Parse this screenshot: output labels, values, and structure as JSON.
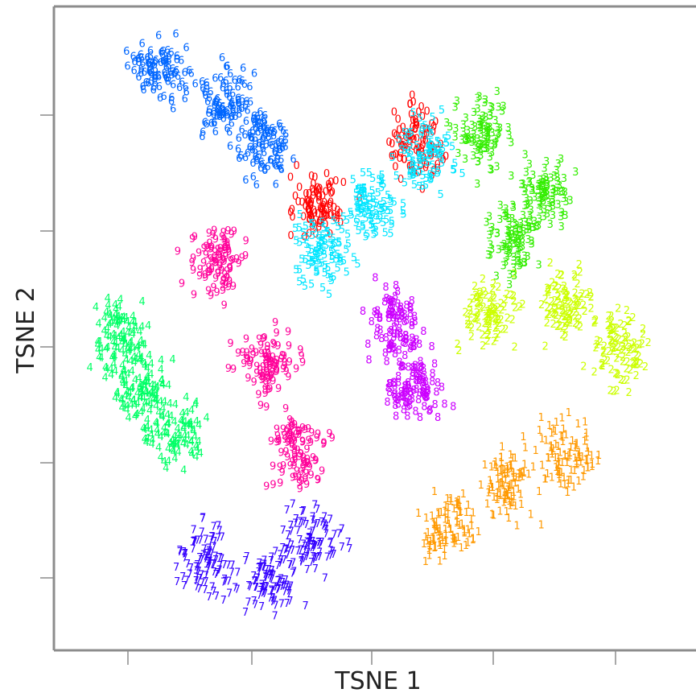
{
  "chart_data": {
    "type": "scatter",
    "xlabel": "TSNE 1",
    "ylabel": "TSNE 2",
    "grid": false,
    "legend": "none",
    "point_marker": "digit label",
    "series": [
      {
        "label": "0",
        "color": "#ff0000",
        "centers": [
          [
            -0.5,
            0.55
          ],
          [
            0.4,
            0.85
          ]
        ]
      },
      {
        "label": "1",
        "color": "#ff9900",
        "centers": [
          [
            0.7,
            -0.95
          ],
          [
            1.3,
            -0.75
          ],
          [
            1.8,
            -0.6
          ]
        ]
      },
      {
        "label": "2",
        "color": "#ccff00",
        "centers": [
          [
            1.1,
            0.05
          ],
          [
            1.8,
            0.1
          ],
          [
            2.3,
            -0.1
          ]
        ]
      },
      {
        "label": "3",
        "color": "#33ee00",
        "centers": [
          [
            1.0,
            0.9
          ],
          [
            1.6,
            0.6
          ],
          [
            1.3,
            0.4
          ]
        ]
      },
      {
        "label": "4",
        "color": "#00ff66",
        "centers": [
          [
            -2.4,
            -0.05
          ],
          [
            -1.9,
            -0.5
          ],
          [
            -2.2,
            -0.3
          ]
        ]
      },
      {
        "label": "5",
        "color": "#00e5ff",
        "centers": [
          [
            0.0,
            0.55
          ],
          [
            -0.5,
            0.35
          ],
          [
            0.5,
            0.8
          ]
        ]
      },
      {
        "label": "6",
        "color": "#0066ff",
        "centers": [
          [
            -2.0,
            1.2
          ],
          [
            -1.4,
            1.05
          ],
          [
            -1.0,
            0.85
          ]
        ]
      },
      {
        "label": "7",
        "color": "#3300ff",
        "centers": [
          [
            -1.6,
            -1.1
          ],
          [
            -1.0,
            -1.2
          ],
          [
            -0.6,
            -1.0
          ]
        ]
      },
      {
        "label": "8",
        "color": "#cc00ff",
        "centers": [
          [
            0.2,
            0.0
          ],
          [
            0.4,
            -0.3
          ]
        ]
      },
      {
        "label": "9",
        "color": "#ff0099",
        "centers": [
          [
            -1.5,
            0.3
          ],
          [
            -1.0,
            -0.2
          ],
          [
            -0.7,
            -0.6
          ]
        ]
      }
    ]
  }
}
